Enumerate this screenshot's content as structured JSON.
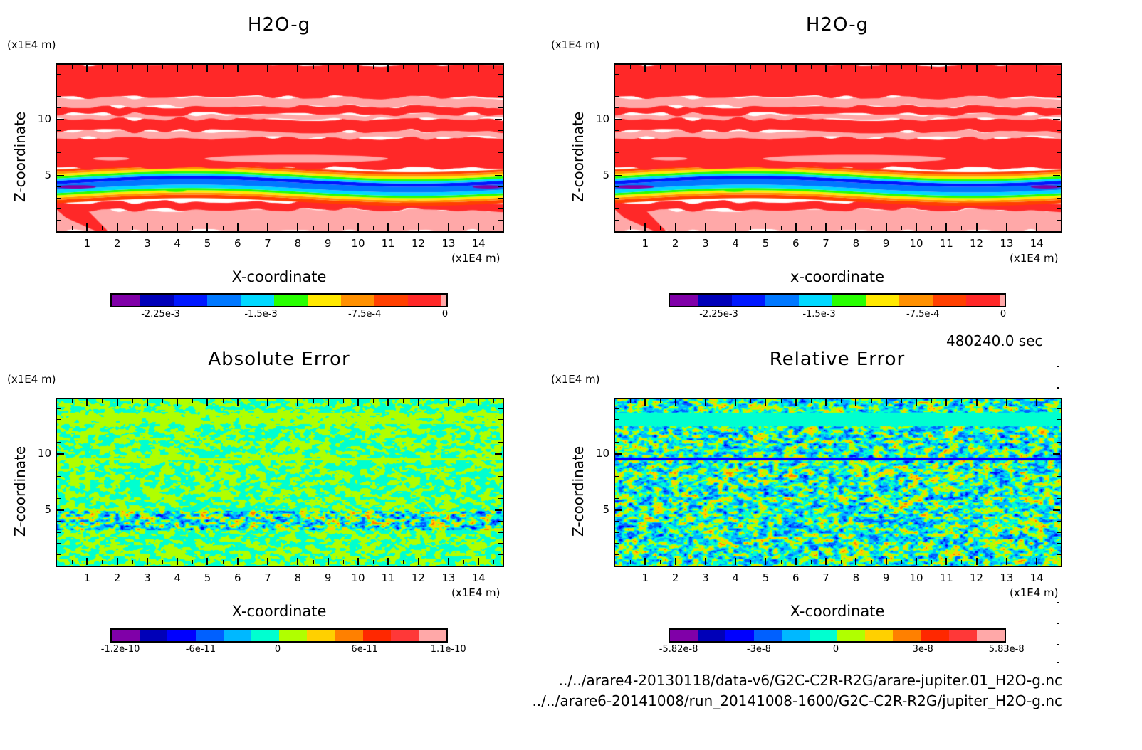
{
  "timestamp": "480240.0 sec",
  "footer": {
    "file1": "../../arare4-20130118/data-v6/G2C-C2R-R2G/arare-jupiter.01_H2O-g.nc",
    "file2": "../../arare6-20141008/run_20141008-1600/G2C-C2R-R2G/jupiter_H2O-g.nc"
  },
  "chart_data": [
    {
      "type": "heatmap",
      "id": "h2o-g-left",
      "title": "H2O-g",
      "xlabel": "X-coordinate",
      "ylabel": "Z-coordinate",
      "x_unit": "(x1E4 m)",
      "y_unit": "(x1E4 m)",
      "xlim": [
        0,
        14.8
      ],
      "ylim": [
        0,
        14.8
      ],
      "xticks": [
        "1",
        "2",
        "3",
        "4",
        "5",
        "6",
        "7",
        "8",
        "9",
        "10",
        "11",
        "12",
        "13",
        "14"
      ],
      "yticks": [
        "5",
        "10"
      ],
      "colorbar": {
        "levels": [
          -0.0025,
          -0.00225,
          -0.002,
          -0.00175,
          -0.0015,
          -0.00125,
          -0.001,
          -0.00075,
          -0.0005,
          -0.00025,
          0,
          2e-05
        ],
        "colors": [
          "#8000a8",
          "#0000b8",
          "#0018ff",
          "#0078ff",
          "#00d8ff",
          "#28ff00",
          "#ffe800",
          "#ff9000",
          "#ff4000",
          "#ff2828",
          "#ffa8a8"
        ],
        "tick_labels": [
          "-2.25e-3",
          "-1.5e-3",
          "-7.5e-4",
          "0"
        ],
        "tick_values": [
          -0.00225,
          -0.0015,
          -0.00075,
          0
        ]
      },
      "field": "bands",
      "bands": [
        {
          "z": [
            0.0,
            1.9
          ],
          "level_index": 10
        },
        {
          "z": [
            1.9,
            2.6
          ],
          "level_index": 9
        },
        {
          "z": [
            2.6,
            2.9
          ],
          "level_index": 8
        },
        {
          "z": [
            2.9,
            3.1
          ],
          "level_index": 7
        },
        {
          "z": [
            3.1,
            3.3
          ],
          "level_index": 6
        },
        {
          "z": [
            3.3,
            3.5
          ],
          "level_index": 5
        },
        {
          "z": [
            3.5,
            3.8
          ],
          "level_index": 4
        },
        {
          "z": [
            3.8,
            4.3
          ],
          "level_index": 3
        },
        {
          "z": [
            4.3,
            4.6
          ],
          "level_index": 2
        },
        {
          "z": [
            4.6,
            4.8
          ],
          "level_index": 4
        },
        {
          "z": [
            4.8,
            5.0
          ],
          "level_index": 5
        },
        {
          "z": [
            5.0,
            5.2
          ],
          "level_index": 6
        },
        {
          "z": [
            5.2,
            5.4
          ],
          "level_index": 7
        },
        {
          "z": [
            5.4,
            5.6
          ],
          "level_index": 8
        },
        {
          "z": [
            5.6,
            8.3
          ],
          "level_index": 9
        },
        {
          "z": [
            8.3,
            8.9
          ],
          "level_index": 10
        },
        {
          "z": [
            8.9,
            10.0
          ],
          "level_index": 9
        },
        {
          "z": [
            10.0,
            10.4
          ],
          "level_index": 10
        },
        {
          "z": [
            10.4,
            11.1
          ],
          "level_index": 9
        },
        {
          "z": [
            11.1,
            11.9
          ],
          "level_index": 10
        },
        {
          "z": [
            11.9,
            14.8
          ],
          "level_index": 9
        }
      ],
      "features": [
        {
          "x": [
            1.2,
            2.4
          ],
          "z": [
            6.3,
            6.6
          ],
          "level_index": 10
        },
        {
          "x": [
            4.9,
            11.0
          ],
          "z": [
            6.1,
            6.8
          ],
          "level_index": 10
        },
        {
          "x": [
            0.0,
            1.3
          ],
          "z": [
            3.8,
            4.1
          ],
          "level_index": 0
        },
        {
          "x": [
            13.8,
            14.8
          ],
          "z": [
            3.8,
            4.1
          ],
          "level_index": 0
        },
        {
          "x": [
            3.6,
            4.3
          ],
          "z": [
            3.5,
            3.7
          ],
          "level_index": 5
        }
      ]
    },
    {
      "type": "heatmap",
      "id": "h2o-g-right",
      "title": "H2O-g",
      "xlabel": "x-coordinate",
      "ylabel": "Z-coordinate",
      "x_unit": "(x1E4 m)",
      "y_unit": "(x1E4 m)",
      "xlim": [
        0,
        14.8
      ],
      "ylim": [
        0,
        14.8
      ],
      "xticks": [
        "1",
        "2",
        "3",
        "4",
        "5",
        "6",
        "7",
        "8",
        "9",
        "10",
        "11",
        "12",
        "13",
        "14"
      ],
      "yticks": [
        "5",
        "10"
      ],
      "colorbar": {
        "colors": [
          "#8000a8",
          "#0000b8",
          "#0018ff",
          "#0078ff",
          "#00d8ff",
          "#28ff00",
          "#ffe800",
          "#ff9000",
          "#ff4000",
          "#ff2828",
          "#ffa8a8"
        ],
        "tick_labels": [
          "-2.25e-3",
          "-1.5e-3",
          "-7.5e-4",
          "0"
        ],
        "tick_values": [
          -0.00225,
          -0.0015,
          -0.00075,
          0
        ]
      },
      "field": "same_as:h2o-g-left"
    },
    {
      "type": "heatmap",
      "id": "absolute-error",
      "title": "Absolute Error",
      "xlabel": "X-coordinate",
      "ylabel": "Z-coordinate",
      "x_unit": "(x1E4 m)",
      "y_unit": "(x1E4 m)",
      "xlim": [
        0,
        14.8
      ],
      "ylim": [
        0,
        14.8
      ],
      "xticks": [
        "1",
        "2",
        "3",
        "4",
        "5",
        "6",
        "7",
        "8",
        "9",
        "10",
        "11",
        "12",
        "13",
        "14"
      ],
      "yticks": [
        "5",
        "10"
      ],
      "colorbar": {
        "colors": [
          "#8000a8",
          "#0000b8",
          "#0000ff",
          "#0060ff",
          "#00b8ff",
          "#00ffd0",
          "#b0ff00",
          "#ffd000",
          "#ff8000",
          "#ff2800",
          "#ff3838",
          "#ffa8a8"
        ],
        "tick_labels": [
          "-1.2e-10",
          "-6e-11",
          "0",
          "6e-11",
          "1.1e-10"
        ],
        "tick_values": [
          -1.2e-10,
          -6e-11,
          0,
          6e-11,
          1.1e-10
        ]
      },
      "field": "noise",
      "dominant_levels": [
        5,
        6
      ],
      "active_band_z": [
        3.2,
        4.9
      ],
      "uniform_band_z": [
        12.6,
        13.6
      ]
    },
    {
      "type": "heatmap",
      "id": "relative-error",
      "title": "Relative Error",
      "xlabel": "X-coordinate",
      "ylabel": "Z-coordinate",
      "x_unit": "(x1E4 m)",
      "y_unit": "(x1E4 m)",
      "xlim": [
        0,
        14.8
      ],
      "ylim": [
        0,
        14.8
      ],
      "xticks": [
        "1",
        "2",
        "3",
        "4",
        "5",
        "6",
        "7",
        "8",
        "9",
        "10",
        "11",
        "12",
        "13",
        "14"
      ],
      "yticks": [
        "5",
        "10"
      ],
      "colorbar": {
        "colors": [
          "#8000a8",
          "#0000b8",
          "#0000ff",
          "#0060ff",
          "#00b8ff",
          "#00ffd0",
          "#b0ff00",
          "#ffd000",
          "#ff8000",
          "#ff2800",
          "#ff3838",
          "#ffa8a8"
        ],
        "tick_labels": [
          "-5.82e-8",
          "-3e-8",
          "0",
          "3e-8",
          "5.83e-8"
        ],
        "tick_values": [
          -5.82e-08,
          -3e-08,
          0,
          3e-08,
          5.83e-08
        ]
      },
      "field": "noise",
      "dominant_levels": [
        2,
        3,
        4,
        5,
        6,
        7,
        8
      ],
      "uniform_band_z": [
        12.4,
        13.6
      ],
      "line_z": 9.5
    }
  ]
}
